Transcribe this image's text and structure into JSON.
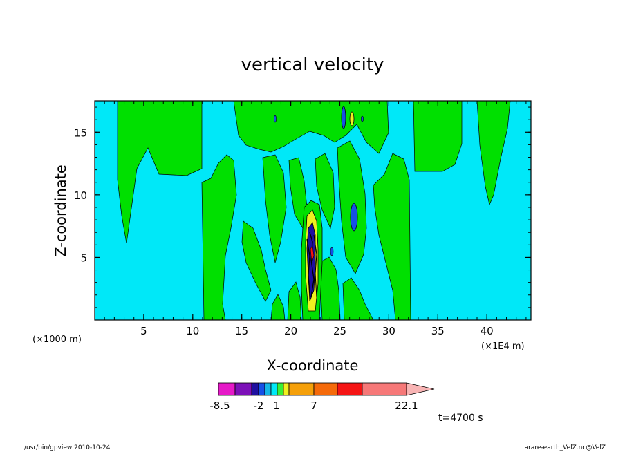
{
  "chart_data": {
    "type": "contour",
    "title": "vertical velocity",
    "xlabel": "X-coordinate",
    "ylabel": "Z-coordinate",
    "x_unit": "(×1E4 m)",
    "y_unit": "(×1000 m)",
    "xlim": [
      0,
      44.5
    ],
    "ylim": [
      0,
      17.5
    ],
    "x_ticks": [
      5,
      10,
      15,
      20,
      25,
      30,
      35,
      40
    ],
    "y_ticks": [
      5,
      10,
      15
    ],
    "colorbar": {
      "labels": [
        "-8.5",
        "-2",
        "1",
        "7",
        "22.1"
      ],
      "levels": [
        -8.5,
        -6.5,
        -4.5,
        -2,
        -1,
        0,
        1,
        2,
        3,
        7,
        10,
        13,
        17,
        22.1
      ],
      "colors": [
        "#e619c8",
        "#7c10b8",
        "#1f0fa0",
        "#1650e6",
        "#15b6e6",
        "#00e8f8",
        "#38f038",
        "#f0f020",
        "#f5a00a",
        "#f56a0a",
        "#f51414",
        "#f67878"
      ]
    },
    "dominant_colors": {
      "background": "#00e8f8",
      "positive": "#00e000"
    },
    "time": "t=4700 s"
  },
  "footer": {
    "left": "/usr/bin/gpview   2010-10-24",
    "right": "arare-earth_VelZ.nc@VelZ"
  }
}
